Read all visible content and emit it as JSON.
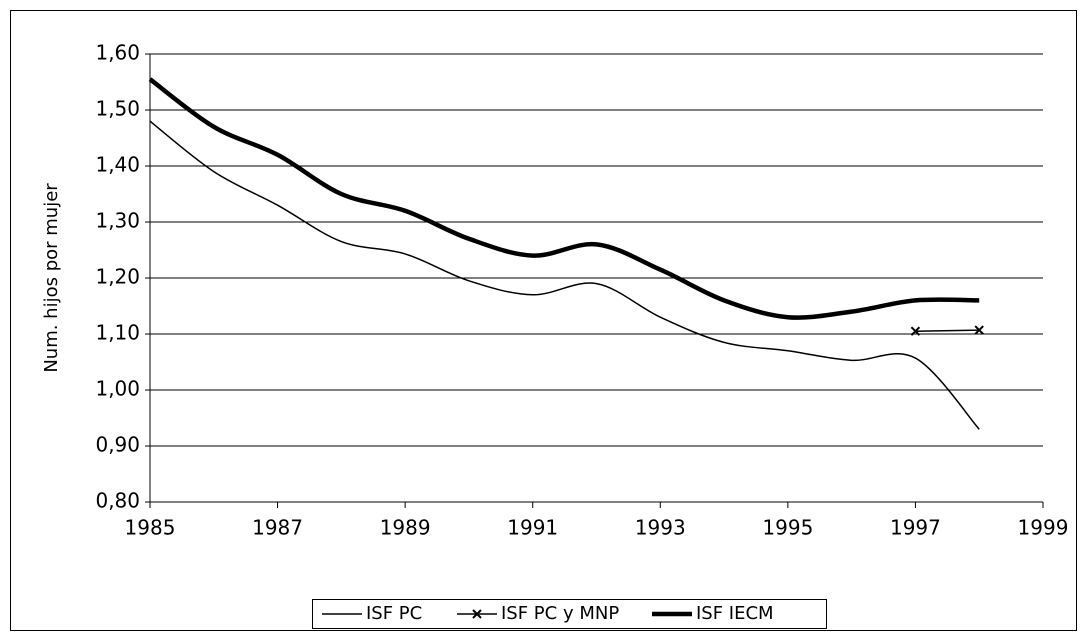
{
  "chart_data": {
    "type": "line",
    "y_label": "Num. hijos por mujer",
    "x": [
      1985,
      1986,
      1987,
      1988,
      1989,
      1990,
      1991,
      1992,
      1993,
      1994,
      1995,
      1996,
      1997,
      1998
    ],
    "series": [
      {
        "name": "ISF PC",
        "color": "#000000",
        "width": 1.5,
        "marker": "none",
        "values": [
          1.48,
          1.39,
          1.33,
          1.265,
          1.243,
          1.195,
          1.17,
          1.19,
          1.13,
          1.085,
          1.07,
          1.053,
          1.057,
          0.93
        ]
      },
      {
        "name": "ISF PC y MNP",
        "color": "#000000",
        "width": 1.5,
        "marker": "x",
        "values": [
          null,
          null,
          null,
          null,
          null,
          null,
          null,
          null,
          null,
          null,
          null,
          null,
          1.105,
          1.107
        ]
      },
      {
        "name": "ISF IECM",
        "color": "#000000",
        "width": 4.5,
        "marker": "none",
        "values": [
          1.555,
          1.47,
          1.42,
          1.35,
          1.32,
          1.27,
          1.24,
          1.26,
          1.215,
          1.16,
          1.13,
          1.14,
          1.16,
          1.16
        ]
      }
    ],
    "xlim": [
      1985,
      1999
    ],
    "xticks": [
      1985,
      1987,
      1989,
      1991,
      1993,
      1995,
      1997,
      1999
    ],
    "ylim": [
      0.8,
      1.6
    ],
    "yticks": [
      {
        "value": 0.8,
        "label": "0,80"
      },
      {
        "value": 0.9,
        "label": "0,90"
      },
      {
        "value": 1.0,
        "label": "1,00"
      },
      {
        "value": 1.1,
        "label": "1,10"
      },
      {
        "value": 1.2,
        "label": "1,20"
      },
      {
        "value": 1.3,
        "label": "1,30"
      },
      {
        "value": 1.4,
        "label": "1,40"
      },
      {
        "value": 1.5,
        "label": "1,50"
      },
      {
        "value": 1.6,
        "label": "1,60"
      }
    ],
    "grid": true,
    "legend": "bottom"
  }
}
